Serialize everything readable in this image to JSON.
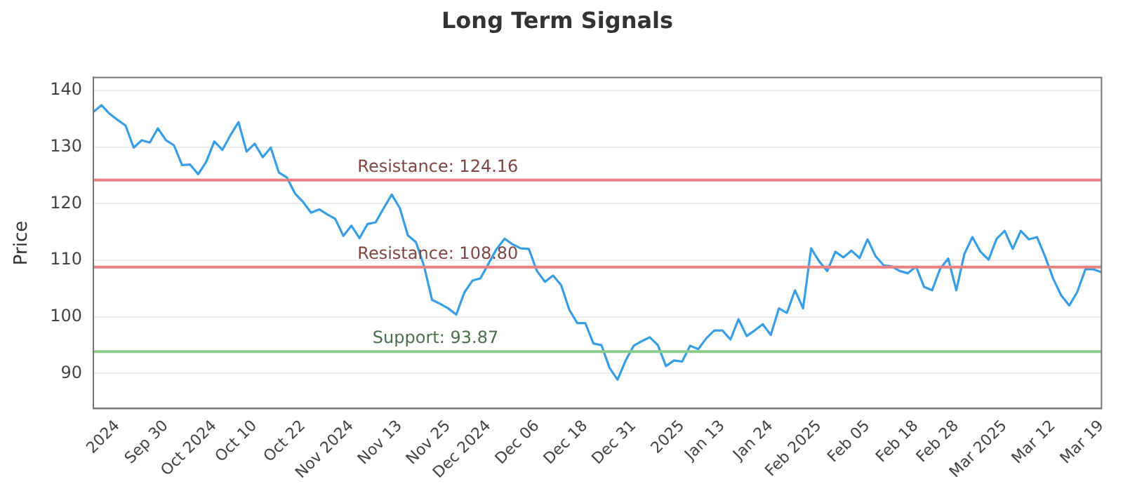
{
  "chart_data": {
    "type": "line",
    "title": "Long Term Signals",
    "ylabel": "Price",
    "categories": [
      null,
      null,
      null,
      "2024",
      null,
      null,
      null,
      null,
      null,
      "Sep 30",
      null,
      null,
      null,
      null,
      null,
      "Oct 2024",
      null,
      null,
      null,
      null,
      "Oct 10",
      null,
      null,
      null,
      null,
      null,
      "Oct 22",
      null,
      null,
      null,
      null,
      null,
      "Nov 2024",
      null,
      null,
      null,
      null,
      null,
      "Nov 13",
      null,
      null,
      null,
      null,
      null,
      "Nov 25",
      null,
      null,
      null,
      null,
      "Dec 2024",
      null,
      null,
      null,
      null,
      null,
      "Dec 06",
      null,
      null,
      null,
      null,
      null,
      "Dec 18",
      null,
      null,
      null,
      null,
      null,
      "Dec 31",
      null,
      null,
      null,
      null,
      null,
      "2025",
      null,
      null,
      null,
      null,
      "Jan 13",
      null,
      null,
      null,
      null,
      null,
      "Jan 24",
      null,
      null,
      null,
      null,
      null,
      "Feb 2025",
      null,
      null,
      null,
      null,
      null,
      "Feb 05",
      null,
      null,
      null,
      null,
      null,
      "Feb 18",
      null,
      null,
      null,
      null,
      "Feb 28",
      null,
      null,
      null,
      null,
      null,
      "Mar 2025",
      null,
      null,
      null,
      null,
      null,
      "Mar 12",
      null,
      null,
      null,
      null,
      null,
      "Mar 19"
    ],
    "series": [
      {
        "color": "#3a9ee4",
        "values": [
          136.2,
          137.4,
          135.9,
          134.8,
          133.8,
          129.9,
          131.2,
          130.8,
          133.3,
          131.2,
          130.3,
          126.8,
          126.9,
          125.2,
          127.4,
          131.0,
          129.5,
          132.1,
          134.4,
          129.2,
          130.6,
          128.2,
          129.9,
          125.5,
          124.6,
          121.8,
          120.3,
          118.4,
          119.0,
          118.1,
          117.3,
          114.3,
          116.1,
          113.9,
          116.4,
          116.7,
          119.2,
          121.6,
          119.2,
          114.4,
          113.2,
          109.0,
          103.0,
          102.3,
          101.5,
          100.4,
          104.3,
          106.4,
          106.8,
          109.4,
          112.0,
          113.8,
          112.8,
          112.1,
          112.0,
          108.1,
          106.2,
          107.3,
          105.6,
          101.3,
          98.9,
          98.9,
          95.3,
          95.0,
          91.0,
          88.9,
          92.3,
          94.9,
          95.7,
          96.4,
          95.0,
          91.3,
          92.3,
          92.1,
          94.9,
          94.3,
          96.2,
          97.6,
          97.6,
          96.0,
          99.6,
          96.6,
          97.6,
          98.7,
          96.8,
          101.5,
          100.7,
          104.7,
          101.5,
          112.1,
          109.8,
          108.1,
          111.5,
          110.5,
          111.7,
          110.4,
          113.7,
          110.7,
          109.1,
          108.9,
          108.1,
          107.7,
          108.9,
          105.3,
          104.7,
          108.5,
          110.3,
          104.7,
          111.1,
          114.1,
          111.5,
          110.1,
          113.8,
          115.2,
          112.0,
          115.2,
          113.7,
          114.1,
          110.7,
          106.8,
          103.8,
          102.0,
          104.4,
          108.4,
          108.4,
          107.9
        ]
      }
    ],
    "ylim": [
      83.8,
      142.3
    ],
    "yticks": [
      90,
      100,
      110,
      120,
      130,
      140
    ],
    "grid": "y",
    "marker": "none",
    "line_style": "solid",
    "legend": false,
    "ref_lines": [
      {
        "axis": "y",
        "value": 124.16,
        "label": "Resistance: 124.16",
        "color": "#e88080"
      },
      {
        "axis": "y",
        "value": 108.8,
        "label": "Resistance: 108.80",
        "color": "#e88080"
      },
      {
        "axis": "y",
        "value": 93.87,
        "label": "Support: 93.87",
        "color": "#8cc98c"
      }
    ]
  }
}
